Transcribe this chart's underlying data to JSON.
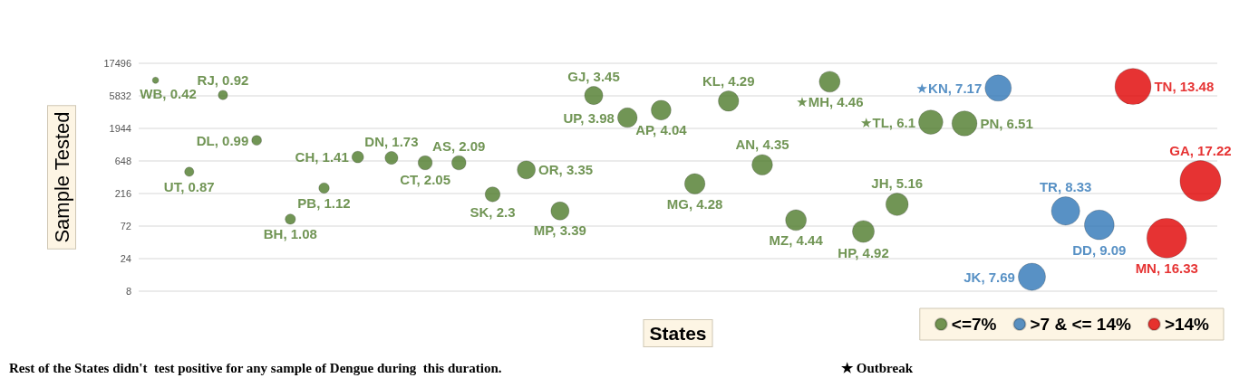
{
  "chart_data": {
    "type": "bubble",
    "xlabel": "States",
    "ylabel": "Sample Tested",
    "categories": [
      null,
      null,
      null,
      null,
      null,
      null,
      null,
      null,
      null,
      null,
      null,
      null,
      null,
      null,
      null,
      null,
      null,
      null,
      null,
      null,
      null,
      null,
      null,
      null,
      null,
      null,
      null,
      null,
      null,
      null,
      null,
      null
    ],
    "series": [
      {
        "name": "<=7%",
        "color": "#4e7a2a",
        "values": [
          9900,
          450,
          6000,
          1300,
          91,
          260,
          740,
          720,
          610,
          610,
          210,
          480,
          120,
          5900,
          2800,
          3600,
          300,
          4900,
          570,
          88,
          9400,
          60,
          150,
          2400,
          2300,
          null,
          null,
          null,
          null,
          null,
          null,
          null
        ],
        "sizes": [
          0.024,
          0.051,
          0.053,
          0.057,
          0.063,
          0.065,
          0.082,
          0.1,
          0.119,
          0.121,
          0.134,
          0.195,
          0.197,
          0.2,
          0.231,
          0.235,
          0.249,
          0.249,
          0.253,
          0.258,
          0.259,
          0.286,
          0.3,
          0.354,
          0.378,
          null,
          null,
          null,
          null,
          null,
          null,
          null
        ]
      },
      {
        "name": ">7 & <= 14%",
        "color": "#2e75b6",
        "values": [
          null,
          null,
          null,
          null,
          null,
          null,
          null,
          null,
          null,
          null,
          null,
          null,
          null,
          null,
          null,
          null,
          null,
          null,
          null,
          null,
          null,
          null,
          null,
          null,
          null,
          7600,
          13,
          120,
          75,
          null,
          null,
          null
        ],
        "sizes": [
          null,
          null,
          null,
          null,
          null,
          null,
          null,
          null,
          null,
          null,
          null,
          null,
          null,
          null,
          null,
          null,
          null,
          null,
          null,
          null,
          null,
          null,
          null,
          null,
          null,
          0.416,
          0.447,
          0.484,
          0.528,
          null,
          null,
          null
        ]
      },
      {
        "name": ">14%",
        "color": "#e00000",
        "values": [
          null,
          null,
          null,
          null,
          null,
          null,
          null,
          null,
          null,
          null,
          null,
          null,
          null,
          null,
          null,
          null,
          null,
          null,
          null,
          null,
          null,
          null,
          null,
          null,
          null,
          null,
          null,
          null,
          null,
          8000,
          48,
          330
        ],
        "sizes": [
          null,
          null,
          null,
          null,
          null,
          null,
          null,
          null,
          null,
          null,
          null,
          null,
          null,
          null,
          null,
          null,
          null,
          null,
          null,
          null,
          null,
          null,
          null,
          null,
          null,
          null,
          null,
          null,
          null,
          0.783,
          0.948,
          1
        ]
      }
    ],
    "ylim": [
      8,
      17496
    ],
    "yticks": [
      8,
      24,
      72,
      216,
      648,
      1944,
      5832,
      17496
    ],
    "log": "y",
    "grid": "y",
    "legend": "bottom right",
    "tick_labels": "y",
    "annotations": [
      "WB, 0.42",
      "UT, 0.87",
      "RJ, 0.92",
      "DL, 0.99",
      "BH, 1.08",
      "PB, 1.12",
      "CH, 1.41",
      "DN, 1.73",
      "CT, 2.05",
      "AS, 2.09",
      "SK, 2.3",
      "OR, 3.35",
      "MP, 3.39",
      "GJ, 3.45",
      "UP, 3.98",
      "AP, 4.04",
      "MG, 4.28",
      "KL, 4.29",
      "AN, 4.35",
      "MZ, 4.44",
      "★MH, 4.46",
      "HP, 4.92",
      "JH, 5.16",
      "★TL, 6.1",
      "PN, 6.51",
      "★KN, 7.17",
      "JK, 7.69",
      "TR, 8.33",
      "DD, 9.09",
      "TN, 13.48",
      "MN, 16.33",
      "GA, 17.22",
      "Rest of the States didn't  test positive for any sample of Dengue during  this duration.",
      "★ Outbreak"
    ]
  }
}
